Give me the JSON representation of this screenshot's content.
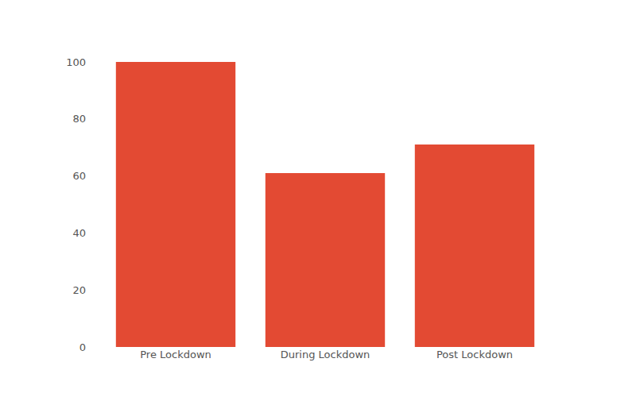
{
  "chart_data": {
    "type": "bar",
    "categories": [
      "Pre Lockdown",
      "During Lockdown",
      "Post Lockdown"
    ],
    "values": [
      100,
      61,
      71
    ],
    "color": "#e34a33",
    "ylim": [
      0,
      100
    ],
    "yticks": [
      0,
      20,
      40,
      60,
      80,
      100
    ],
    "grid": false
  }
}
